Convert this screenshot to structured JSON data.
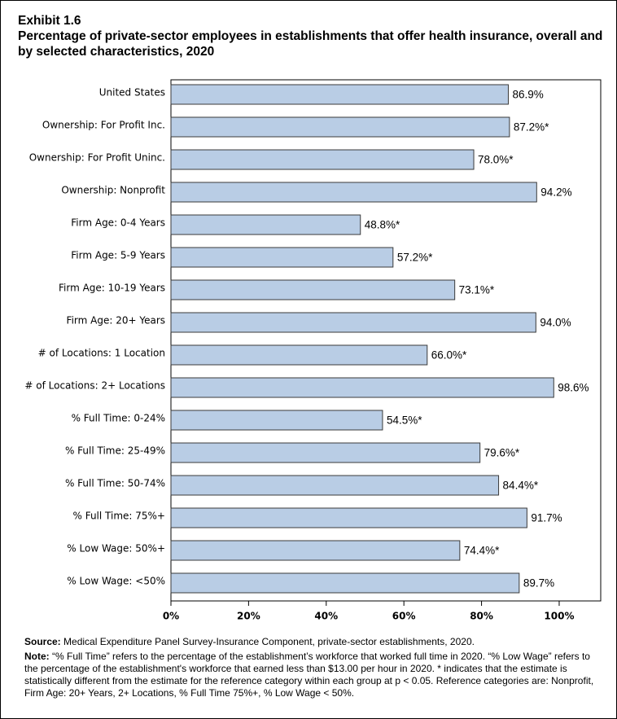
{
  "chart_data": {
    "type": "bar",
    "orientation": "horizontal",
    "exhibit": "Exhibit 1.6",
    "title": "Percentage of private-sector employees in establishments that offer health insurance, overall and by selected characteristics, 2020",
    "categories": [
      "United States",
      "Ownership: For Profit Inc.",
      "Ownership: For Profit Uninc.",
      "Ownership: Nonprofit",
      "Firm Age: 0-4 Years",
      "Firm Age: 5-9 Years",
      "Firm Age: 10-19 Years",
      "Firm Age: 20+ Years",
      "# of Locations: 1 Location",
      "# of Locations: 2+ Locations",
      "% Full Time: 0-24%",
      "% Full Time: 25-49%",
      "% Full Time: 50-74%",
      "% Full Time: 75%+",
      "% Low Wage: 50%+",
      "% Low Wage: <50%"
    ],
    "values": [
      86.9,
      87.2,
      78.0,
      94.2,
      48.8,
      57.2,
      73.1,
      94.0,
      66.0,
      98.6,
      54.5,
      79.6,
      84.4,
      91.7,
      74.4,
      89.7
    ],
    "value_labels": [
      "86.9%",
      "87.2%*",
      "78.0%*",
      "94.2%",
      "48.8%*",
      "57.2%*",
      "73.1%*",
      "94.0%",
      "66.0%*",
      "98.6%",
      "54.5%*",
      "79.6%*",
      "84.4%*",
      "91.7%",
      "74.4%*",
      "89.7%"
    ],
    "color": "#b9cde5",
    "xlim": [
      0,
      110.7
    ],
    "xticks": [
      {
        "value": 0,
        "label": "0%"
      },
      {
        "value": 20,
        "label": "20%"
      },
      {
        "value": 40,
        "label": "40%"
      },
      {
        "value": 60,
        "label": "60%"
      },
      {
        "value": 80,
        "label": "80%"
      },
      {
        "value": 100,
        "label": "100%"
      }
    ],
    "source_label": "Source:",
    "source": "Medical Expenditure Panel Survey-Insurance Component, private-sector establishments, 2020.",
    "note_label": "Note:",
    "note": "“% Full Time” refers to the percentage of the establishment’s workforce that worked full time in 2020. “% Low Wage” refers to the percentage of the establishment's workforce that earned less than $13.00 per hour in 2020. * indicates that the estimate is statistically different from the estimate for the reference category within each group at p < 0.05.  Reference categories are: Nonprofit, Firm Age: 20+ Years, 2+ Locations, % Full Time 75%+, % Low Wage < 50%."
  }
}
